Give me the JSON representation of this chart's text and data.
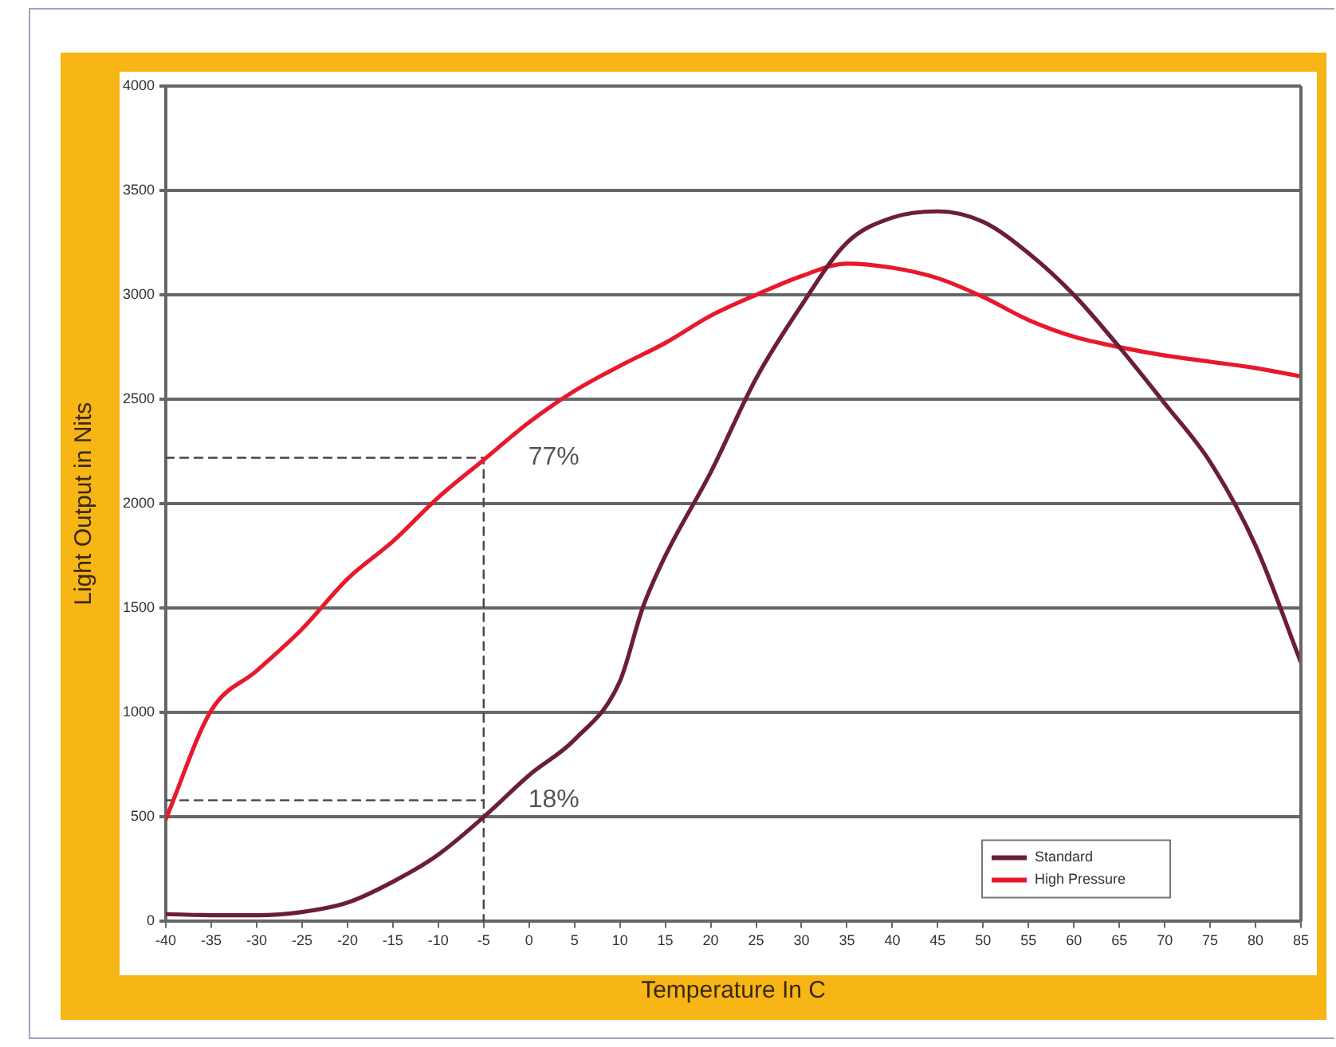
{
  "chart_data": {
    "type": "line",
    "xlabel": "Temperature In C",
    "ylabel": "Light Output in Nits",
    "xlim": [
      -40,
      85
    ],
    "xticks": [
      -40,
      -35,
      -30,
      -25,
      -20,
      -15,
      -10,
      -5,
      0,
      5,
      10,
      15,
      20,
      25,
      30,
      35,
      40,
      45,
      50,
      55,
      60,
      65,
      70,
      75,
      80,
      85
    ],
    "ylim": [
      0,
      4000
    ],
    "yticks": [
      0,
      500,
      1000,
      1500,
      2000,
      2500,
      3000,
      3500,
      4000
    ],
    "grid": "y",
    "legend": "bottom right",
    "marker": "none",
    "x": [
      -40,
      -35,
      -30,
      -25,
      -20,
      -15,
      -10,
      -5,
      0,
      5,
      10,
      12.5,
      15,
      20,
      25,
      30,
      35,
      40,
      45,
      50,
      55,
      60,
      65,
      70,
      75,
      80,
      85
    ],
    "series": [
      {
        "name": "Standard",
        "color": "#6b1e35",
        "values": [
          35,
          30,
          30,
          45,
          90,
          190,
          320,
          500,
          700,
          870,
          1150,
          1500,
          1750,
          2150,
          2600,
          2950,
          3250,
          3370,
          3400,
          3350,
          3200,
          3000,
          2750,
          2480,
          2200,
          1800,
          1240
        ]
      },
      {
        "name": "High Pressure",
        "color": "#e8192c",
        "x": [
          -40,
          -35,
          -30,
          -25,
          -20,
          -15,
          -10,
          -5,
          0,
          5,
          10,
          15,
          20,
          25,
          30,
          35,
          40,
          45,
          50,
          55,
          60,
          65,
          70,
          75,
          80,
          85
        ],
        "values": [
          490,
          1010,
          1200,
          1400,
          1640,
          1820,
          2030,
          2210,
          2390,
          2540,
          2660,
          2770,
          2900,
          3000,
          3090,
          3150,
          3130,
          3080,
          2990,
          2880,
          2800,
          2750,
          2710,
          2680,
          2650,
          2610
        ]
      },
      {
        "type": "line",
        "line_style": "dashed",
        "color": "#444444",
        "x": [
          -40,
          -5,
          -5
        ],
        "values": [
          2220,
          2220,
          0
        ]
      },
      {
        "type": "line",
        "line_style": "dashed",
        "color": "#444444",
        "x": [
          -40,
          -5
        ],
        "values": [
          580,
          580
        ]
      }
    ],
    "annotations": [
      {
        "text": "77%",
        "x": -5,
        "y": 2220
      },
      {
        "text": "18%",
        "x": -5,
        "y": 580
      }
    ]
  }
}
